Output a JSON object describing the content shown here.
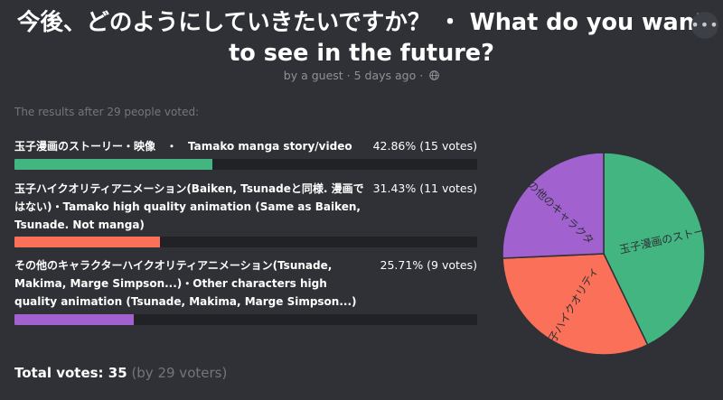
{
  "poll": {
    "title_line1": "今後、どのようにしていきたいですか？ ・ What do you want",
    "title_line2": "to see in the future?",
    "meta": "by a guest · 5 days ago ·",
    "results_label": "The results after 29 people voted:",
    "menu_glyph": "•••",
    "options": [
      {
        "text": "玉子漫画のストーリー・映像　・　Tamako manga story/video",
        "stat": "42.86% (15 votes)",
        "percent": 42.86,
        "votes": 15,
        "color": "#43b581",
        "pie_label": "玉子漫画のストーリー"
      },
      {
        "text": "玉子ハイクオリティアニメーション(Baiken, Tsunadeと同様. 漫画ではない)・Tamako high quality animation (Same as Baiken, Tsunade. Not manga)",
        "stat": "31.43% (11 votes)",
        "percent": 31.43,
        "votes": 11,
        "color": "#fa7059",
        "pie_label": "子ハイクオリティ"
      },
      {
        "text": "その他のキャラクターハイクオリティアニメーション(Tsunade, Makima, Marge Simpson...)・Other characters high quality animation (Tsunade, Makima, Marge Simpson...)",
        "stat": "25.71% (9 votes)",
        "percent": 25.71,
        "votes": 9,
        "color": "#a162d0",
        "pie_label": "の他のキャラクタ"
      }
    ],
    "total_label": "Total votes: 35",
    "voters_label": "(by 29 voters)"
  }
}
